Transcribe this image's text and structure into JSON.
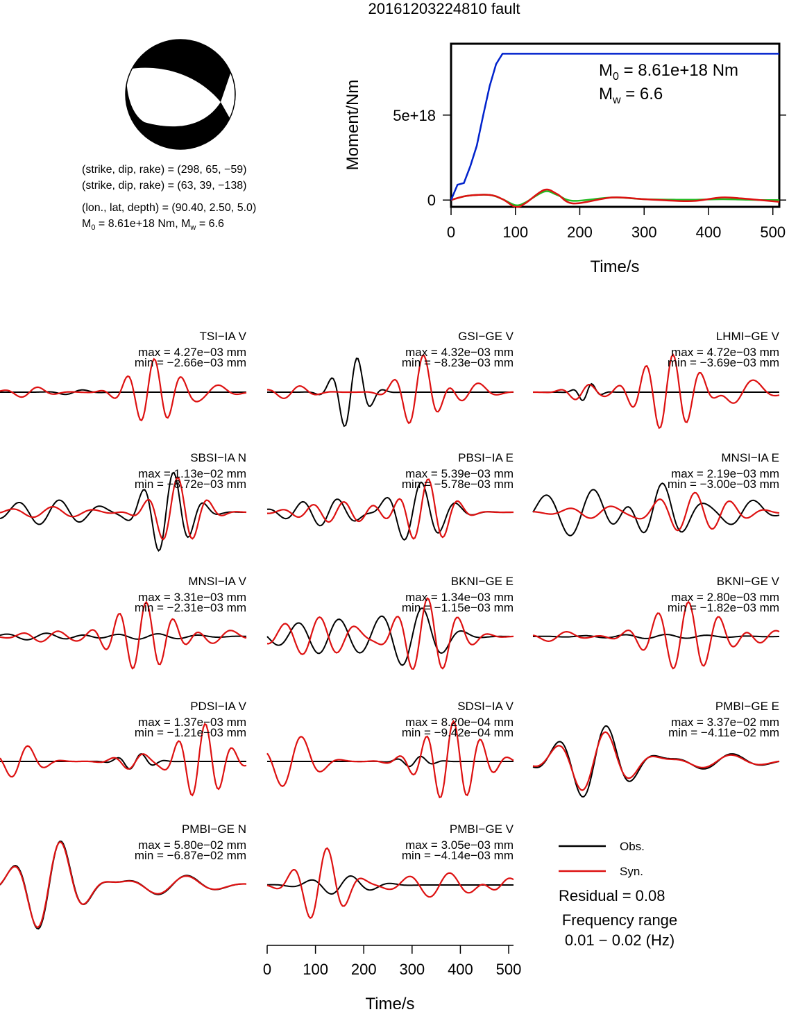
{
  "title": "20161203224810 fault",
  "mechanism": {
    "line1": "(strike, dip, rake) = (298, 65, −59)",
    "line2": "(strike, dip, rake) = (63, 39, −138)",
    "line3": "(lon., lat, depth) = (90.40, 2.50, 5.0)",
    "line4_m0": "8.61e+18 Nm",
    "line4_mw": "6.6",
    "m_prefix": "M",
    "sub0": "0",
    "subw": "w"
  },
  "moment_plot": {
    "ylabel": "Moment/Nm",
    "xlabel": "Time/s",
    "m0_text": " = 8.61e+18 Nm",
    "mw_text": " = 6.6",
    "yticks": [
      "0",
      "5e+18"
    ],
    "xticks": [
      "0",
      "100",
      "200",
      "300",
      "400",
      "500"
    ]
  },
  "chart_data": [
    {
      "type": "line",
      "title": "",
      "xlabel": "Time/s",
      "ylabel": "Moment/Nm",
      "xlim": [
        0,
        510
      ],
      "ylim": [
        -4e+17,
        9.2e+18
      ],
      "series": [
        {
          "color": "#0022cc",
          "x": [
            0,
            10,
            20,
            30,
            40,
            50,
            60,
            70,
            80,
            510
          ],
          "y": [
            0,
            9e+17,
            1e+18,
            2e+18,
            3.2e+18,
            5e+18,
            6.7e+18,
            8e+18,
            8.61e+18,
            8.61e+18
          ]
        },
        {
          "color": "#dd1111",
          "x": [
            0,
            25,
            60,
            80,
            100,
            115,
            145,
            165,
            190,
            250,
            300,
            350,
            380,
            420,
            450,
            480,
            510
          ],
          "y": [
            0,
            2.5e+17,
            3e+17,
            5e+16,
            -4e+17,
            -2e+17,
            6e+17,
            3.5e+17,
            -2e+17,
            1.5e+17,
            5e+16,
            -5e+16,
            -5e+16,
            1.5e+17,
            1e+17,
            0.0,
            -1e+17
          ]
        },
        {
          "color": "#22bb22",
          "x": [
            0,
            25,
            60,
            80,
            100,
            115,
            145,
            165,
            190,
            250,
            300,
            350,
            380,
            420,
            450,
            480,
            510
          ],
          "y": [
            0,
            2.5e+17,
            3e+17,
            5e+16,
            -3e+17,
            -1.5e+17,
            5e+17,
            3e+17,
            -5e+16,
            1.5e+17,
            5e+16,
            2e+16,
            2e+16,
            5e+16,
            3e+16,
            0.0,
            0.0
          ]
        }
      ]
    }
  ],
  "stations": [
    {
      "name": "TSI−IA V",
      "max": "max = 4.27e−03 mm",
      "min": "min = −2.66e−03 mm"
    },
    {
      "name": "GSI−GE V",
      "max": "max = 4.32e−03 mm",
      "min": "min = −8.23e−03 mm"
    },
    {
      "name": "LHMI−GE V",
      "max": "max = 4.72e−03 mm",
      "min": "min = −3.69e−03 mm"
    },
    {
      "name": "SBSI−IA N",
      "max": "max = 1.13e−02 mm",
      "min": "min = −8.72e−03 mm"
    },
    {
      "name": "PBSI−IA E",
      "max": "max = 5.39e−03 mm",
      "min": "min = −5.78e−03 mm"
    },
    {
      "name": "MNSI−IA E",
      "max": "max = 2.19e−03 mm",
      "min": "min = −3.00e−03 mm"
    },
    {
      "name": "MNSI−IA V",
      "max": "max = 3.31e−03 mm",
      "min": "min = −2.31e−03 mm"
    },
    {
      "name": "BKNI−GE E",
      "max": "max = 1.34e−03 mm",
      "min": "min = −1.15e−03 mm"
    },
    {
      "name": "BKNI−GE V",
      "max": "max = 2.80e−03 mm",
      "min": "min = −1.82e−03 mm"
    },
    {
      "name": "PDSI−IA V",
      "max": "max = 1.37e−03 mm",
      "min": "min = −1.21e−03 mm"
    },
    {
      "name": "SDSI−IA V",
      "max": "max = 8.20e−04 mm",
      "min": "min = −9.42e−04 mm"
    },
    {
      "name": "PMBI−GE E",
      "max": "max = 3.37e−02 mm",
      "min": "min = −4.11e−02 mm"
    },
    {
      "name": "PMBI−GE N",
      "max": "max = 5.80e−02 mm",
      "min": "min = −6.87e−02 mm"
    },
    {
      "name": "PMBI−GE V",
      "max": "max = 3.05e−03 mm",
      "min": "min = −4.14e−03 mm"
    }
  ],
  "waveform_axis": {
    "xlabel": "Time/s",
    "xticks": [
      "0",
      "100",
      "200",
      "300",
      "400",
      "500"
    ]
  },
  "legend": {
    "obs": "Obs.",
    "syn": "Syn.",
    "residual": "Residual = 0.08",
    "freq_label": "Frequency range",
    "freq_value": "0.01 − 0.02 (Hz)"
  },
  "colors": {
    "obs": "#000000",
    "syn": "#dd1111",
    "moment": "#0022cc",
    "green": "#22bb22"
  }
}
